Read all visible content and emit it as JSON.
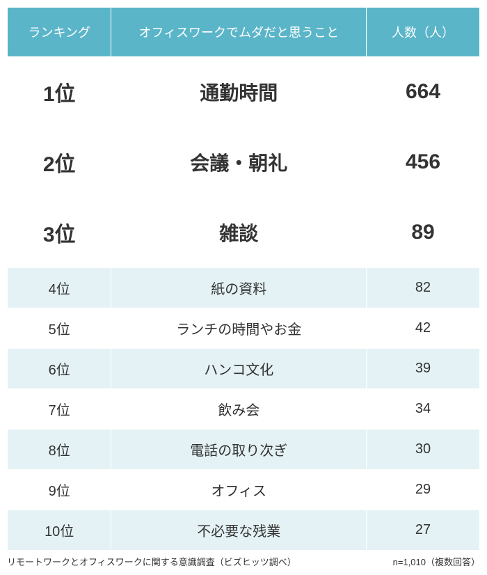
{
  "table": {
    "headers": {
      "rank": "ランキング",
      "item": "オフィスワークでムダだと思うこと",
      "count": "人数（人）"
    },
    "rows": [
      {
        "rank": "1位",
        "item": "通勤時間",
        "count": "664",
        "top": true
      },
      {
        "rank": "2位",
        "item": "会議・朝礼",
        "count": "456",
        "top": true
      },
      {
        "rank": "3位",
        "item": "雑談",
        "count": "89",
        "top": true
      },
      {
        "rank": "4位",
        "item": "紙の資料",
        "count": "82",
        "top": false
      },
      {
        "rank": "5位",
        "item": "ランチの時間やお金",
        "count": "42",
        "top": false
      },
      {
        "rank": "6位",
        "item": "ハンコ文化",
        "count": "39",
        "top": false
      },
      {
        "rank": "7位",
        "item": "飲み会",
        "count": "34",
        "top": false
      },
      {
        "rank": "8位",
        "item": "電話の取り次ぎ",
        "count": "30",
        "top": false
      },
      {
        "rank": "9位",
        "item": "オフィス",
        "count": "29",
        "top": false
      },
      {
        "rank": "10位",
        "item": "不必要な残業",
        "count": "27",
        "top": false
      }
    ],
    "colors": {
      "header_bg": "#5bb5c9",
      "header_text": "#ffffff",
      "row_even_bg": "#e4f2f5",
      "row_odd_bg": "#ffffff",
      "text": "#333333",
      "border": "#ffffff"
    },
    "typography": {
      "header_fontsize": 18,
      "top_rank_fontsize": 30,
      "top_item_fontsize": 28,
      "rest_fontsize": 20,
      "footer_fontsize": 13
    }
  },
  "footer": {
    "left": "リモートワークとオフィスワークに関する意識調査（ビズヒッツ調べ）",
    "right": "n=1,010（複数回答）"
  }
}
